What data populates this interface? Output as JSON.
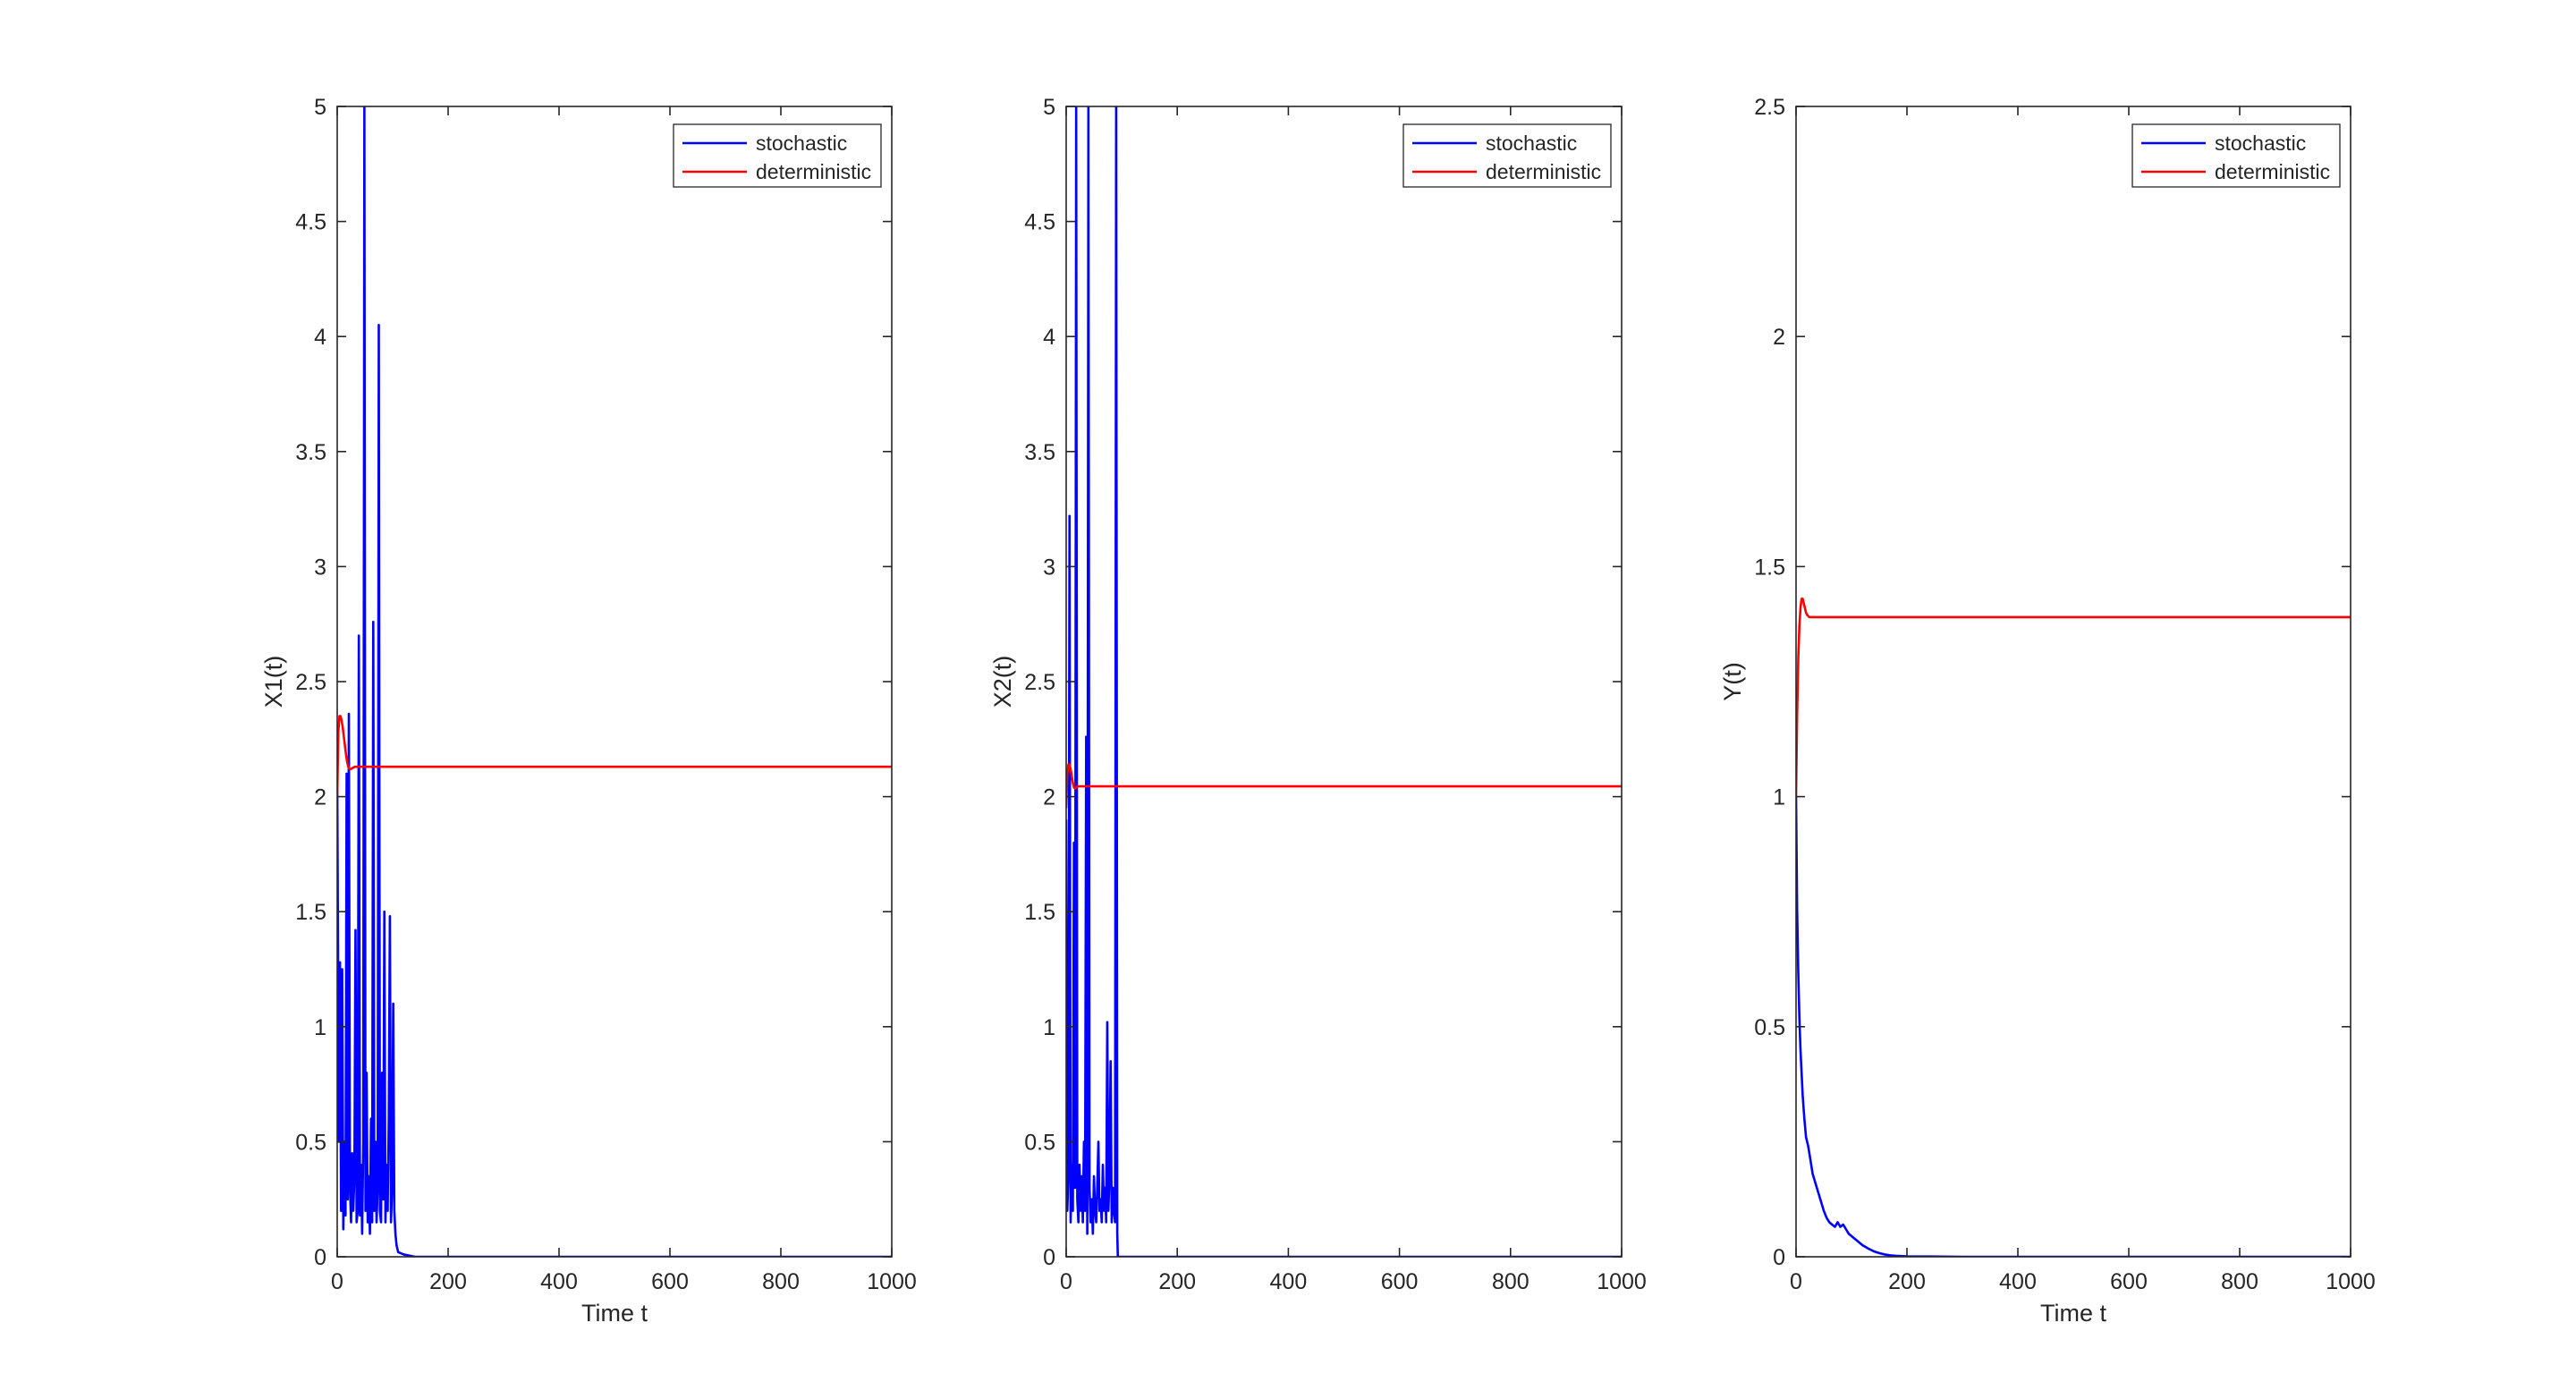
{
  "chart_data": [
    {
      "type": "line",
      "xlabel": "Time t",
      "ylabel": "X1(t)",
      "xlim": [
        0,
        1000
      ],
      "ylim": [
        0,
        5
      ],
      "xticks": [
        0,
        200,
        400,
        600,
        800,
        1000
      ],
      "yticks": [
        0,
        0.5,
        1,
        1.5,
        2,
        2.5,
        3,
        3.5,
        4,
        4.5,
        5
      ],
      "grid": false,
      "legend_position": "top-right",
      "series": [
        {
          "name": "stochastic",
          "color": "#0000ff",
          "x": [
            0,
            3,
            5,
            7,
            9,
            11,
            13,
            15,
            17,
            19,
            21,
            23,
            25,
            27,
            29,
            31,
            33,
            35,
            37,
            39,
            41,
            43,
            45,
            47,
            49,
            51,
            53,
            55,
            57,
            59,
            61,
            63,
            65,
            67,
            69,
            71,
            73,
            75,
            77,
            79,
            81,
            83,
            85,
            87,
            89,
            91,
            93,
            95,
            97,
            99,
            101,
            103,
            105,
            107,
            110,
            120,
            140,
            200,
            400,
            600,
            800,
            1000
          ],
          "y": [
            2.1,
            0.5,
            1.28,
            0.2,
            1.25,
            0.12,
            0.5,
            0.18,
            2.1,
            0.25,
            2.36,
            0.3,
            0.15,
            0.45,
            0.2,
            0.35,
            1.42,
            0.15,
            0.2,
            2.7,
            0.18,
            0.4,
            0.1,
            0.5,
            5.0,
            0.2,
            0.8,
            0.15,
            0.35,
            0.1,
            0.6,
            0.15,
            2.76,
            0.2,
            0.5,
            0.15,
            0.3,
            4.05,
            0.2,
            0.15,
            0.8,
            0.25,
            1.5,
            0.15,
            0.4,
            0.2,
            0.6,
            1.48,
            0.15,
            0.3,
            1.1,
            0.2,
            0.1,
            0.05,
            0.02,
            0.01,
            0,
            0,
            0,
            0,
            0,
            0
          ]
        },
        {
          "name": "deterministic",
          "color": "#ff0000",
          "x": [
            0,
            2,
            4,
            6,
            8,
            10,
            12,
            14,
            16,
            18,
            20,
            22,
            25,
            28,
            32,
            40,
            60,
            100,
            200,
            400,
            600,
            800,
            1000
          ],
          "y": [
            2.0,
            2.28,
            2.35,
            2.35,
            2.33,
            2.3,
            2.26,
            2.22,
            2.18,
            2.15,
            2.13,
            2.12,
            2.12,
            2.125,
            2.13,
            2.13,
            2.13,
            2.13,
            2.13,
            2.13,
            2.13,
            2.13,
            2.13
          ]
        }
      ]
    },
    {
      "type": "line",
      "xlabel": "",
      "ylabel": "X2(t)",
      "xlim": [
        0,
        1000
      ],
      "ylim": [
        0,
        5
      ],
      "xticks": [
        0,
        200,
        400,
        600,
        800,
        1000
      ],
      "yticks": [
        0,
        0.5,
        1,
        1.5,
        2,
        2.5,
        3,
        3.5,
        4,
        4.5,
        5
      ],
      "grid": false,
      "legend_position": "top-right",
      "series": [
        {
          "name": "stochastic",
          "color": "#0000ff",
          "x": [
            0,
            2,
            4,
            6,
            8,
            10,
            12,
            14,
            16,
            18,
            20,
            22,
            24,
            26,
            28,
            30,
            32,
            34,
            36,
            38,
            40,
            42,
            44,
            46,
            48,
            50,
            52,
            54,
            56,
            58,
            60,
            62,
            64,
            66,
            68,
            70,
            72,
            74,
            76,
            78,
            80,
            82,
            84,
            86,
            88,
            90,
            92,
            93,
            95,
            100,
            200,
            400,
            600,
            800,
            1000
          ],
          "y": [
            1.9,
            0.2,
            0.35,
            3.22,
            0.15,
            0.4,
            0.2,
            1.8,
            0.3,
            5.0,
            0.25,
            0.15,
            0.4,
            0.2,
            0.35,
            0.15,
            0.5,
            0.2,
            2.26,
            0.1,
            5.0,
            0.3,
            0.15,
            0.25,
            0.1,
            0.35,
            0.2,
            0.15,
            0.3,
            0.5,
            0.2,
            0.25,
            0.15,
            0.4,
            0.2,
            0.3,
            0.15,
            1.02,
            0.2,
            0.35,
            0.85,
            0.15,
            0.3,
            0.2,
            0.15,
            5.0,
            0.1,
            0,
            0,
            0,
            0,
            0,
            0,
            0,
            0
          ]
        },
        {
          "name": "deterministic",
          "color": "#ff0000",
          "x": [
            0,
            2,
            4,
            6,
            8,
            10,
            12,
            14,
            16,
            18,
            20,
            25,
            30,
            40,
            60,
            100,
            200,
            400,
            600,
            800,
            1000
          ],
          "y": [
            1.95,
            2.1,
            2.14,
            2.14,
            2.12,
            2.09,
            2.06,
            2.04,
            2.035,
            2.04,
            2.045,
            2.045,
            2.045,
            2.045,
            2.045,
            2.045,
            2.045,
            2.045,
            2.045,
            2.045,
            2.045
          ]
        }
      ]
    },
    {
      "type": "line",
      "xlabel": "Time t",
      "ylabel": "Y(t)",
      "xlim": [
        0,
        1000
      ],
      "ylim": [
        0,
        2.5
      ],
      "xticks": [
        0,
        200,
        400,
        600,
        800,
        1000
      ],
      "yticks": [
        0,
        0.5,
        1,
        1.5,
        2,
        2.5
      ],
      "grid": false,
      "legend_position": "top-right",
      "series": [
        {
          "name": "stochastic",
          "color": "#0000ff",
          "x": [
            0,
            2,
            4,
            6,
            8,
            10,
            12,
            15,
            18,
            22,
            26,
            30,
            35,
            40,
            45,
            50,
            55,
            60,
            65,
            70,
            75,
            80,
            85,
            90,
            95,
            100,
            110,
            120,
            130,
            140,
            150,
            160,
            170,
            180,
            200,
            300,
            400,
            600,
            800,
            1000
          ],
          "y": [
            1.0,
            0.75,
            0.62,
            0.52,
            0.45,
            0.4,
            0.35,
            0.3,
            0.26,
            0.24,
            0.21,
            0.18,
            0.16,
            0.14,
            0.12,
            0.1,
            0.085,
            0.075,
            0.07,
            0.065,
            0.075,
            0.065,
            0.07,
            0.06,
            0.05,
            0.045,
            0.035,
            0.025,
            0.018,
            0.012,
            0.008,
            0.005,
            0.003,
            0.002,
            0.001,
            0,
            0,
            0,
            0,
            0
          ]
        },
        {
          "name": "deterministic",
          "color": "#ff0000",
          "x": [
            0,
            2,
            4,
            6,
            8,
            10,
            12,
            14,
            16,
            18,
            20,
            24,
            28,
            35,
            50,
            100,
            200,
            400,
            600,
            800,
            1000
          ],
          "y": [
            1.0,
            1.18,
            1.3,
            1.37,
            1.41,
            1.43,
            1.43,
            1.42,
            1.41,
            1.4,
            1.395,
            1.39,
            1.39,
            1.39,
            1.39,
            1.39,
            1.39,
            1.39,
            1.39,
            1.39,
            1.39
          ]
        }
      ]
    }
  ]
}
